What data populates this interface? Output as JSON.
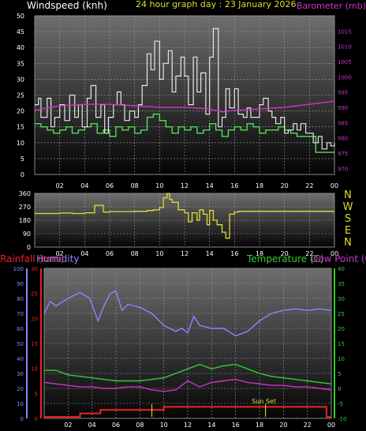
{
  "header": {
    "title": "24 hour graph day : 23 January 2026",
    "wind_label": "Windspeed (knh)",
    "baro_label": "Barometer (mb)",
    "rain_label": "Rainfall (mm)",
    "hum_label": "Humidity",
    "temp_label": "Temperature (C)",
    "dew_label": "Dew Point (C)",
    "sunset_label": "Sun Set"
  },
  "colors": {
    "wind": "#e6e6e6",
    "gust_fill": "#55dd55",
    "baro": "#cc33cc",
    "winddir": "#dddd33",
    "rain": "#ee2222",
    "humidity": "#8888ff",
    "temperature": "#33cc33",
    "dewpoint": "#cc33cc",
    "sunmark": "#cccc22",
    "axis_label": "#ffffff"
  },
  "chart_data": [
    {
      "type": "line",
      "panel": "wind",
      "x_ticks": [
        "02",
        "04",
        "06",
        "08",
        "10",
        "12",
        "14",
        "16",
        "18",
        "20",
        "22",
        "00"
      ],
      "y_ticks": [
        "0",
        "5",
        "10",
        "15",
        "20",
        "25",
        "30",
        "35",
        "40",
        "45",
        "50"
      ],
      "y_ticks_right": [
        "970",
        "975",
        "980",
        "985",
        "990",
        "995",
        "1000",
        "1005",
        "1010",
        "1015"
      ],
      "ylim": [
        0,
        50
      ],
      "y2lim": [
        968,
        1020
      ],
      "xlim": [
        0,
        24
      ],
      "series": [
        {
          "name": "Windspeed (knh)",
          "x": [
            0.0,
            0.3,
            0.5,
            1.0,
            1.3,
            1.6,
            2.0,
            2.4,
            2.8,
            3.2,
            3.5,
            3.8,
            4.2,
            4.5,
            4.9,
            5.3,
            5.6,
            5.9,
            6.3,
            6.6,
            6.9,
            7.2,
            7.6,
            8.0,
            8.3,
            8.6,
            9.0,
            9.3,
            9.6,
            10.0,
            10.3,
            10.7,
            11.0,
            11.3,
            11.7,
            12.0,
            12.3,
            12.7,
            13.0,
            13.3,
            13.7,
            14.0,
            14.3,
            14.7,
            15.0,
            15.3,
            15.6,
            16.0,
            16.3,
            16.7,
            17.0,
            17.3,
            17.7,
            18.0,
            18.3,
            18.7,
            19.0,
            19.3,
            19.7,
            20.0,
            20.3,
            20.7,
            21.0,
            21.3,
            21.7,
            22.0,
            22.3,
            22.7,
            23.0,
            23.4,
            23.7,
            24.0
          ],
          "values": [
            22,
            24,
            18,
            24,
            15,
            18,
            22,
            17,
            25,
            18,
            22,
            15,
            24,
            28,
            18,
            22,
            13,
            18,
            22,
            26,
            22,
            17,
            20,
            18,
            22,
            28,
            38,
            33,
            42,
            30,
            35,
            39,
            26,
            31,
            37,
            31,
            22,
            37,
            26,
            32,
            19,
            37,
            46,
            15,
            18,
            27,
            21,
            27,
            19,
            18,
            21,
            18,
            18,
            22,
            24,
            20,
            18,
            16,
            18,
            13,
            14,
            16,
            14,
            16,
            13,
            13,
            10,
            12,
            8,
            10,
            9,
            10
          ]
        },
        {
          "name": "Barometer (mb)",
          "x": [
            0,
            2,
            4,
            6,
            8,
            10,
            12,
            14,
            15,
            16,
            18,
            20,
            22,
            24
          ],
          "values": [
            989,
            990.5,
            991,
            991,
            990.5,
            990,
            990,
            989.5,
            988.5,
            989,
            989.5,
            990,
            991,
            992
          ]
        },
        {
          "name": "Gust",
          "x": [
            0.0,
            0.5,
            1.0,
            1.5,
            2.0,
            2.5,
            3.0,
            3.5,
            4.0,
            4.5,
            5.0,
            5.5,
            6.0,
            6.5,
            7.0,
            7.5,
            8.0,
            8.5,
            9.0,
            9.5,
            10.0,
            10.5,
            11.0,
            11.5,
            12.0,
            12.5,
            13.0,
            13.5,
            14.0,
            14.5,
            15.0,
            15.5,
            16.0,
            16.5,
            17.0,
            17.5,
            18.0,
            18.5,
            19.0,
            19.5,
            20.0,
            20.5,
            21.0,
            21.5,
            22.0,
            22.5,
            23.0,
            23.5,
            24.0
          ],
          "values": [
            16,
            15,
            14,
            13,
            14,
            15,
            13,
            14,
            15,
            16,
            13,
            14,
            12,
            15,
            14,
            15,
            13,
            14,
            18,
            19,
            17,
            15,
            13,
            15,
            14,
            15,
            13,
            14,
            16,
            14,
            12,
            14,
            15,
            14,
            16,
            15,
            13,
            14,
            14,
            15,
            14,
            13,
            12,
            12,
            12,
            7,
            7,
            7,
            7
          ]
        }
      ]
    },
    {
      "type": "line",
      "panel": "wind_direction",
      "x_ticks": [
        "02",
        "04",
        "06",
        "08",
        "10",
        "12",
        "14",
        "16",
        "18",
        "20",
        "22",
        "00"
      ],
      "y_ticks": [
        "0",
        "90",
        "180",
        "270",
        "360"
      ],
      "direction_labels": [
        "N",
        "W",
        "S",
        "E",
        "N"
      ],
      "ylim": [
        0,
        360
      ],
      "xlim": [
        0,
        24
      ],
      "series": [
        {
          "name": "Wind direction",
          "x": [
            0.0,
            1.0,
            2.0,
            3.0,
            4.0,
            4.7,
            4.8,
            5.5,
            6.0,
            7.0,
            8.0,
            9.0,
            9.5,
            10.0,
            10.3,
            10.6,
            10.8,
            11.0,
            11.5,
            12.0,
            12.3,
            12.6,
            13.0,
            13.2,
            13.5,
            13.8,
            14.0,
            14.3,
            14.6,
            15.0,
            15.3,
            15.6,
            16.0,
            16.3,
            17.0,
            18.0,
            19.0,
            20.0,
            21.0,
            22.0,
            23.0,
            24.0
          ],
          "values": [
            225,
            225,
            228,
            225,
            230,
            230,
            280,
            235,
            238,
            238,
            240,
            245,
            250,
            265,
            330,
            360,
            320,
            300,
            250,
            230,
            170,
            230,
            180,
            250,
            220,
            150,
            245,
            180,
            150,
            100,
            60,
            220,
            235,
            240,
            240,
            240,
            240,
            240,
            240,
            240,
            240,
            240
          ]
        }
      ]
    },
    {
      "type": "line",
      "panel": "temperature",
      "x_ticks": [
        "02",
        "04",
        "06",
        "08",
        "10",
        "12",
        "14",
        "16",
        "18",
        "20",
        "22",
        "00"
      ],
      "y_ticks_rain": [
        "0",
        "5",
        "10",
        "15",
        "20",
        "25",
        "30"
      ],
      "y_ticks_humidity": [
        "0",
        "10",
        "20",
        "30",
        "40",
        "50",
        "60",
        "70",
        "80",
        "90",
        "100"
      ],
      "y_ticks_temp": [
        "-10",
        "-5",
        "0",
        "5",
        "10",
        "15",
        "20",
        "25",
        "30",
        "35",
        "40"
      ],
      "rain_ylim": [
        0,
        30
      ],
      "humidity_ylim": [
        0,
        100
      ],
      "temp_ylim": [
        -10,
        40
      ],
      "xlim": [
        0,
        24
      ],
      "sunset_hour": 18.5,
      "sun_marks": [
        9.0,
        18.5
      ],
      "series": [
        {
          "name": "Humidity",
          "x": [
            0.0,
            0.5,
            1.0,
            2.0,
            3.0,
            3.8,
            4.5,
            5.0,
            5.5,
            6.0,
            6.5,
            7.0,
            8.0,
            9.0,
            10.0,
            11.0,
            11.5,
            12.0,
            12.5,
            13.0,
            14.0,
            15.0,
            16.0,
            17.0,
            18.0,
            19.0,
            20.0,
            21.0,
            22.0,
            23.0,
            24.0
          ],
          "values": [
            70,
            78,
            75,
            80,
            84,
            80,
            65,
            75,
            83,
            85,
            72,
            76,
            74,
            70,
            62,
            58,
            60,
            57,
            68,
            62,
            60,
            60,
            55,
            58,
            65,
            70,
            72,
            73,
            72,
            73,
            72
          ]
        },
        {
          "name": "Temperature (C)",
          "x": [
            0,
            1,
            2,
            3,
            4,
            5,
            6,
            7,
            8,
            9,
            10,
            11,
            12,
            13,
            14,
            15,
            16,
            17,
            18,
            19,
            20,
            21,
            22,
            23,
            24
          ],
          "values": [
            6.0,
            6.0,
            4.5,
            4.0,
            3.5,
            3.0,
            2.5,
            2.5,
            2.5,
            3.0,
            3.5,
            5.0,
            6.5,
            8.0,
            6.5,
            7.5,
            8.0,
            6.5,
            5.0,
            4.0,
            3.5,
            3.0,
            2.5,
            2.0,
            1.5
          ]
        },
        {
          "name": "Dew Point (C)",
          "x": [
            0,
            1,
            2,
            3,
            4,
            5,
            6,
            7,
            8,
            9,
            10,
            11,
            12,
            13,
            14,
            15,
            16,
            17,
            18,
            19,
            20,
            21,
            22,
            23,
            24
          ],
          "values": [
            2.0,
            1.5,
            1.0,
            0.5,
            0.5,
            0.0,
            0.0,
            0.5,
            0.5,
            -0.5,
            -1.0,
            -0.5,
            2.5,
            0.5,
            2.0,
            2.5,
            3.0,
            2.0,
            1.5,
            1.0,
            1.0,
            0.5,
            0.5,
            0.0,
            -0.5
          ]
        },
        {
          "name": "Rainfall (mm)",
          "x": [
            0.0,
            2.8,
            3.0,
            4.5,
            4.7,
            8.0,
            9.0,
            10.0,
            12.0,
            14.0,
            16.0,
            18.0,
            20.0,
            22.0,
            23.5,
            23.6,
            24.0
          ],
          "values": [
            0.3,
            0.3,
            1.0,
            1.0,
            1.7,
            1.7,
            1.7,
            2.3,
            2.3,
            2.3,
            2.3,
            2.3,
            2.3,
            2.3,
            2.3,
            0.3,
            0.3
          ]
        }
      ]
    }
  ]
}
